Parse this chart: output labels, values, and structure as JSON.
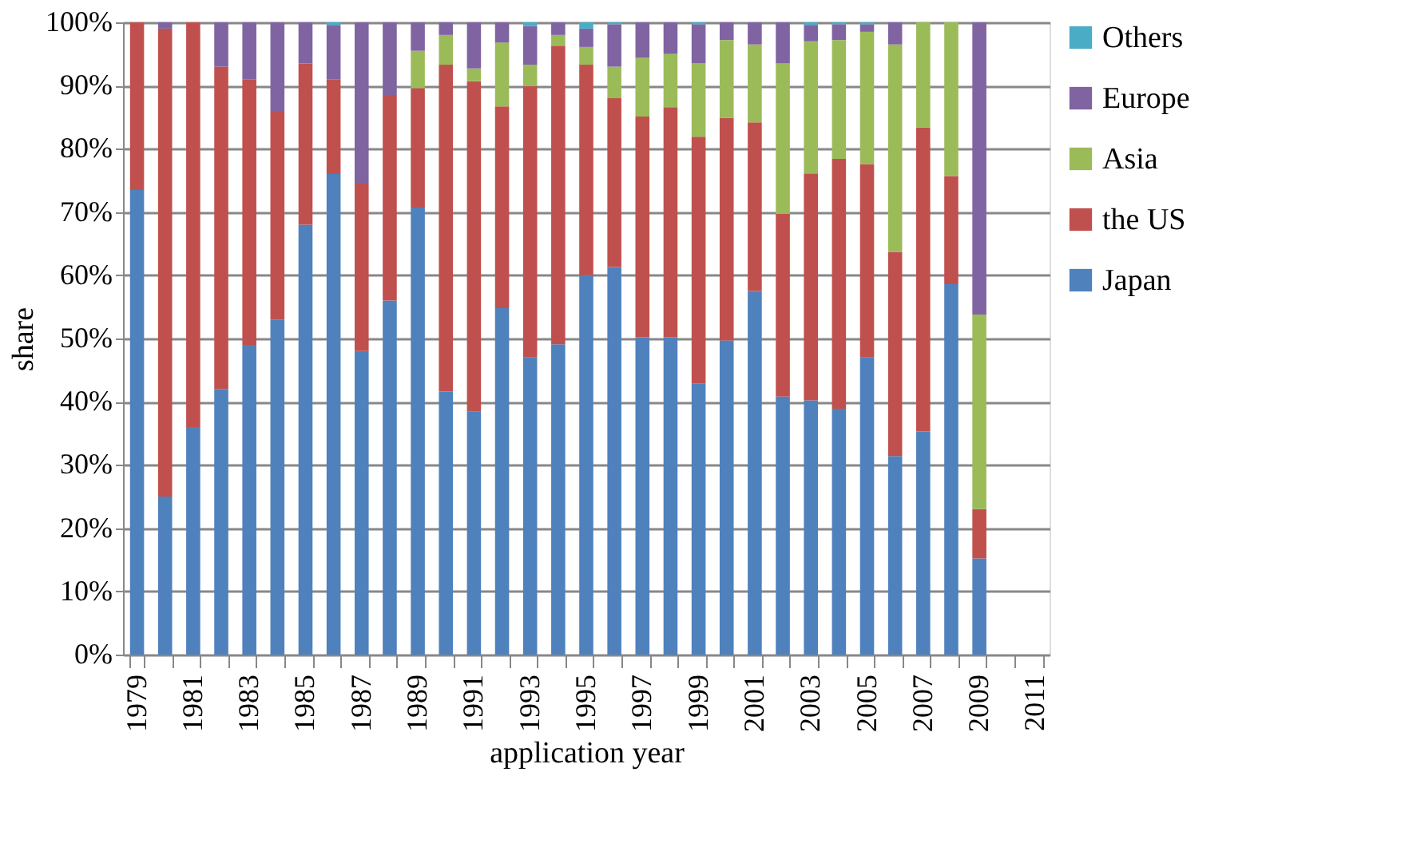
{
  "chart_data": {
    "type": "bar",
    "stacked": true,
    "xlabel": "application year",
    "ylabel": "share",
    "categories": [
      "1979",
      null,
      "1981",
      null,
      "1983",
      null,
      "1985",
      null,
      "1987",
      null,
      "1989",
      null,
      "1991",
      null,
      "1993",
      null,
      "1995",
      null,
      "1997",
      null,
      "1999",
      null,
      "2001",
      null,
      "2003",
      null,
      "2005",
      null,
      "2007",
      null,
      "2009",
      null,
      "2011"
    ],
    "series": [
      {
        "name": "Japan",
        "color": "#4f81bd",
        "values": [
          73.5,
          25,
          36,
          42,
          49,
          53,
          68,
          76,
          48,
          56,
          70.7,
          41.6,
          38.4,
          54.8,
          47,
          49.1,
          60,
          61.3,
          50.2,
          50.2,
          42.9,
          49.7,
          57.5,
          40.8,
          40.2,
          38.9,
          47,
          31.4,
          35.3,
          58.6,
          15.2,
          null,
          null
        ]
      },
      {
        "name": "the US",
        "color": "#c0504d",
        "values": [
          26.5,
          74,
          64,
          51,
          42,
          33,
          25.5,
          15,
          26.5,
          32.5,
          18.9,
          51.7,
          52.3,
          31.9,
          42.9,
          47.2,
          33.3,
          26.7,
          34.9,
          36.4,
          39,
          35.2,
          26.7,
          28.9,
          35.9,
          39.5,
          30.6,
          32.3,
          48.1,
          17.1,
          7.8,
          null,
          null
        ]
      },
      {
        "name": "Asia",
        "color": "#9bbb59",
        "values": [
          0,
          0,
          0,
          0,
          0,
          0,
          0,
          0,
          0,
          0,
          5.9,
          4.7,
          2,
          10.1,
          3.4,
          1.7,
          2.8,
          5,
          9.3,
          8.4,
          11.6,
          12.3,
          12.3,
          23.8,
          20.9,
          18.8,
          20.9,
          32.8,
          16.6,
          24.3,
          30.8,
          null,
          null
        ]
      },
      {
        "name": "Europe",
        "color": "#8064a2",
        "values": [
          0,
          1,
          0,
          7,
          9,
          14,
          6.5,
          8.5,
          25.5,
          11.5,
          4.5,
          2,
          7.3,
          3.2,
          6.1,
          2,
          2.9,
          6.7,
          5.6,
          5,
          6.2,
          2.8,
          3.5,
          6.5,
          2.6,
          2.5,
          1.2,
          3.5,
          0,
          0,
          46.2,
          null,
          null
        ]
      },
      {
        "name": "Others",
        "color": "#4bacc6",
        "values": [
          0,
          0,
          0,
          0,
          0,
          0,
          0,
          0.5,
          0,
          0,
          0,
          0,
          0,
          0,
          0.6,
          0,
          1,
          0.3,
          0,
          0,
          0.3,
          0,
          0,
          0,
          0.4,
          0.3,
          0.3,
          0,
          0,
          0,
          0,
          null,
          null
        ]
      }
    ],
    "ylim": [
      0,
      100
    ],
    "yticks": [
      {
        "value": 0,
        "label": "0%"
      },
      {
        "value": 10,
        "label": "10%"
      },
      {
        "value": 20,
        "label": "20%"
      },
      {
        "value": 30,
        "label": "30%"
      },
      {
        "value": 40,
        "label": "40%"
      },
      {
        "value": 50,
        "label": "50%"
      },
      {
        "value": 60,
        "label": "60%"
      },
      {
        "value": 70,
        "label": "70%"
      },
      {
        "value": 80,
        "label": "80%"
      },
      {
        "value": 90,
        "label": "90%"
      },
      {
        "value": 100,
        "label": "100%"
      }
    ],
    "grid": "y",
    "legend": "right"
  }
}
